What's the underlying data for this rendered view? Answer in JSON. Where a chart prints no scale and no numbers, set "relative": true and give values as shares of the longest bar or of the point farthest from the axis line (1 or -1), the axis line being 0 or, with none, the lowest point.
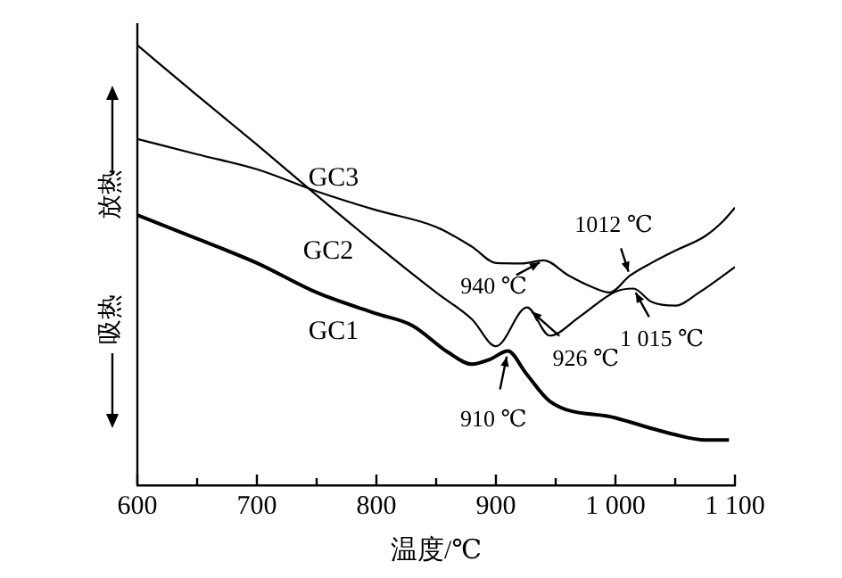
{
  "chart_data": {
    "type": "line",
    "relative": true,
    "xlabel": "温度/℃",
    "xlim": [
      600,
      1100
    ],
    "xticks": [
      600,
      {
        "value": 650,
        "label": null
      },
      700,
      {
        "value": 750,
        "label": null
      },
      800,
      {
        "value": 850,
        "label": null
      },
      900,
      {
        "value": 950,
        "label": null
      },
      {
        "value": 1000,
        "label": "1 000"
      },
      {
        "value": 1050,
        "label": null
      },
      {
        "value": 1100,
        "label": "1 100"
      }
    ],
    "grid": false,
    "legend": false,
    "marker": "none",
    "line_style": "solid",
    "series": [
      {
        "name": "GC1",
        "color": "#000000",
        "x": [
          600,
          650,
          700,
          750,
          800,
          830,
          860,
          880,
          895,
          910,
          925,
          945,
          1000,
          1050,
          1075,
          1095
        ],
        "values": [
          0.614,
          0.56,
          0.505,
          0.438,
          0.39,
          0.363,
          0.302,
          0.275,
          0.286,
          0.305,
          0.255,
          0.191,
          0.153,
          0.115,
          0.103,
          0.103
        ]
      },
      {
        "name": "GC2",
        "color": "#000000",
        "x": [
          600,
          650,
          700,
          750,
          800,
          850,
          880,
          900,
          926,
          945,
          970,
          1000,
          1015,
          1030,
          1050,
          1070,
          1100
        ],
        "values": [
          1.0,
          0.886,
          0.774,
          0.659,
          0.546,
          0.438,
          0.377,
          0.316,
          0.404,
          0.34,
          0.383,
          0.44,
          0.447,
          0.417,
          0.408,
          0.438,
          0.496
        ]
      },
      {
        "name": "GC3",
        "color": "#000000",
        "x": [
          600,
          650,
          700,
          750,
          800,
          850,
          880,
          900,
          922,
          940,
          960,
          980,
          995,
          1012,
          1030,
          1050,
          1075,
          1090,
          1100
        ],
        "values": [
          0.787,
          0.752,
          0.718,
          0.668,
          0.625,
          0.587,
          0.542,
          0.505,
          0.504,
          0.511,
          0.478,
          0.451,
          0.438,
          0.476,
          0.505,
          0.533,
          0.566,
          0.6,
          0.631
        ]
      }
    ],
    "annotations": [
      {
        "text": "910 ℃",
        "x": 910,
        "y": 0.305
      },
      {
        "text": "926 ℃",
        "x": 926,
        "y": 0.404
      },
      {
        "text": "940 ℃",
        "x": 940,
        "y": 0.511
      },
      {
        "text": "1012 ℃",
        "x": 1012,
        "y": 0.476
      },
      {
        "text": "1 015 ℃",
        "x": 1015,
        "y": 0.447
      },
      "放热",
      "吸热"
    ]
  }
}
